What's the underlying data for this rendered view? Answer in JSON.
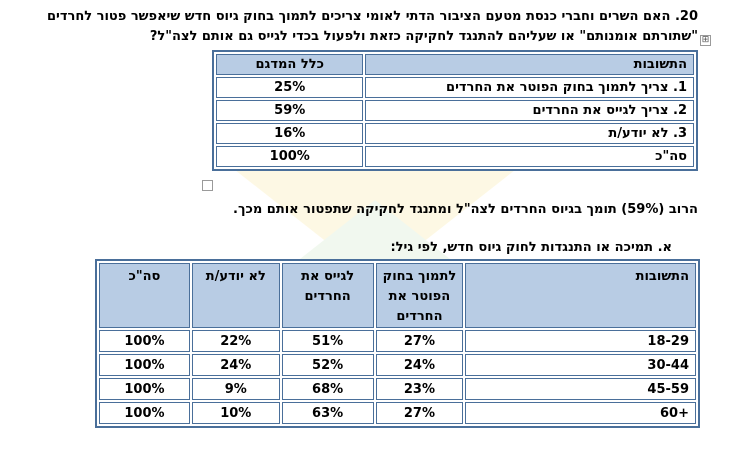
{
  "question": {
    "line1": "20. האם השרים וחברי כנסת מטעם הציבור הדתי לאומי צריכים לתמוך בחוק גיוס חדש שיאפשר פטור לחרדים",
    "line2": "\"שתורתם אומנותם\" או שעליהם להתנגד לחקיקה כזאת ולפעול בכדי לגייס גם אותם לצה\"ל?"
  },
  "table1": {
    "headers": [
      "התשובות",
      "כלל המדגם"
    ],
    "rows": [
      {
        "answer": "1. צריך לתמוך בחוק הפוטר את החרדים",
        "value": "25%"
      },
      {
        "answer": "2. צריך לגייס את החרדים",
        "value": "59%"
      },
      {
        "answer": "3. לא יודע/ת",
        "value": "16%"
      },
      {
        "answer": "סה\"כ",
        "value": "100%"
      }
    ]
  },
  "summary": "הרוב (59%) תומך בגיוס החרדים לצה\"ל ומתנגד לחקיקה שתפטור אותם מכך.",
  "subheading": "א.   תמיכה או התנגדות לחוק גיוס חדש, לפי גיל:",
  "table2": {
    "headers": [
      "התשובות",
      "לתמוך בחוק הפוטר את החרדים",
      "לגייס את החרדים",
      "לא יודע/ת",
      "סה\"כ"
    ],
    "rows": [
      {
        "age": "18-29",
        "support": "27%",
        "draft": "51%",
        "unknown": "22%",
        "total": "100%"
      },
      {
        "age": "30-44",
        "support": "24%",
        "draft": "52%",
        "unknown": "24%",
        "total": "100%"
      },
      {
        "age": "45-59",
        "support": "23%",
        "draft": "68%",
        "unknown": "9%",
        "total": "100%"
      },
      {
        "age": "+60",
        "support": "27%",
        "draft": "63%",
        "unknown": "10%",
        "total": "100%"
      }
    ]
  },
  "colors": {
    "header_fill": "#b8cce4",
    "border": "#4a6f9a",
    "watermark": "#f2c200"
  },
  "icons": {
    "table_move_handle": "⊞"
  }
}
